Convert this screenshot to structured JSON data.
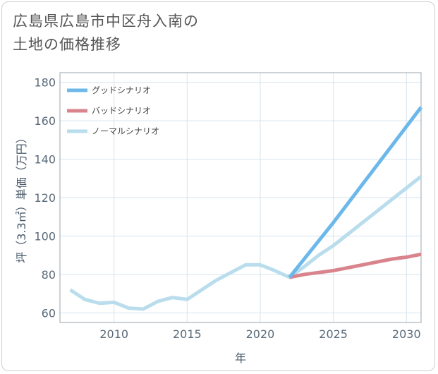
{
  "title_line1": "広島県広島市中区舟入南の",
  "title_line2": "土地の価格推移",
  "chart_data": {
    "type": "line",
    "title": "広島県広島市中区舟入南の 土地の価格推移",
    "xlabel": "年",
    "ylabel": "坪（3.3㎡）単価（万円）",
    "xlim": [
      2006.3,
      2031
    ],
    "ylim": [
      55,
      185
    ],
    "x_ticks": [
      2010,
      2015,
      2020,
      2025,
      2030
    ],
    "y_ticks": [
      60,
      80,
      100,
      120,
      140,
      160,
      180
    ],
    "grid": true,
    "legend_position": "top-left",
    "series": [
      {
        "name": "グッドシナリオ",
        "color": "#6cb8ea",
        "x": [
          2022,
          2025,
          2028,
          2031
        ],
        "y": [
          78.5,
          107,
          137,
          167
        ]
      },
      {
        "name": "バッドシナリオ",
        "color": "#d9848d",
        "x": [
          2022,
          2023,
          2024,
          2025,
          2026,
          2027,
          2028,
          2029,
          2030,
          2031
        ],
        "y": [
          78.5,
          80,
          81,
          82,
          83.5,
          85,
          86.5,
          88,
          89,
          90.5
        ]
      },
      {
        "name": "ノーマルシナリオ",
        "color": "#b9ddec",
        "x": [
          2007,
          2008,
          2009,
          2010,
          2011,
          2012,
          2013,
          2014,
          2015,
          2016,
          2017,
          2018,
          2019,
          2020,
          2021,
          2022,
          2023,
          2024,
          2025,
          2026,
          2027,
          2028,
          2029,
          2030,
          2031
        ],
        "y": [
          72,
          67,
          65,
          65.5,
          62.5,
          62,
          66,
          68,
          67,
          72,
          77,
          81,
          85,
          85,
          82,
          78.5,
          84,
          90,
          95,
          101,
          107,
          113,
          119,
          125,
          131
        ]
      }
    ]
  }
}
